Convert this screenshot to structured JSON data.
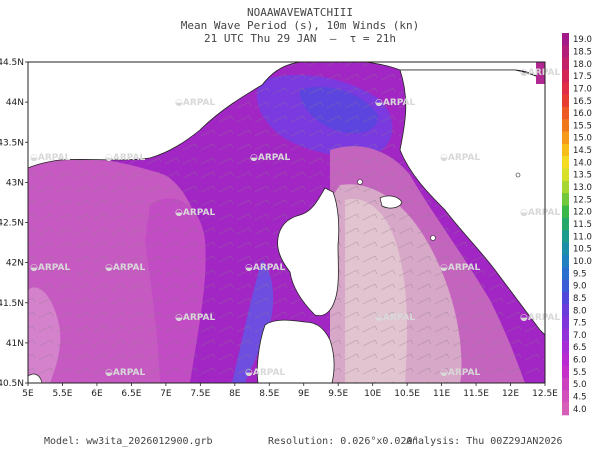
{
  "header": {
    "model_name": "NOAAWAVEWATCHIII",
    "product": "Mean Wave Period (s), 10m Winds (kn)",
    "valid_time": "21 UTC Thu 29 JAN  –  τ = 21h"
  },
  "watermark": "ARPAL",
  "map": {
    "lat_ticks": [
      "44.5N",
      "44N",
      "43.5N",
      "43N",
      "42.5N",
      "42N",
      "41.5N",
      "41N",
      "40.5N"
    ],
    "lon_ticks": [
      "5E",
      "5.5E",
      "6E",
      "6.5E",
      "7E",
      "7.5E",
      "8E",
      "8.5E",
      "9E",
      "9.5E",
      "10E",
      "10.5E",
      "11E",
      "11.5E",
      "12E",
      "12.5E"
    ],
    "lon_range": [
      5,
      12.5
    ],
    "lat_range": [
      40.5,
      44.5
    ]
  },
  "colorbar": {
    "labels": [
      "19.0",
      "18.5",
      "18.0",
      "17.5",
      "17.0",
      "16.5",
      "16.0",
      "15.5",
      "15.0",
      "14.5",
      "14.0",
      "13.5",
      "13.0",
      "12.5",
      "12.0",
      "11.5",
      "11.0",
      "10.5",
      "10.0",
      "9.5",
      "9.0",
      "8.5",
      "8.0",
      "7.5",
      "7.0",
      "6.5",
      "6.0",
      "5.5",
      "5.0",
      "4.5",
      "4.0"
    ],
    "colors": [
      "#a21a8a",
      "#b41e7a",
      "#c42068",
      "#d42456",
      "#e02c44",
      "#e83c32",
      "#ee5a26",
      "#f2781e",
      "#f59a1a",
      "#f7be1a",
      "#f5dc22",
      "#d8e028",
      "#a8d630",
      "#70c83a",
      "#3cb84a",
      "#26a86a",
      "#1c9c8c",
      "#1c8ea8",
      "#2080c0",
      "#2870d0",
      "#3a5cd6",
      "#5048da",
      "#6a3cdc",
      "#8034dc",
      "#9430da",
      "#a82cd6",
      "#b82ad0",
      "#c430c8",
      "#cc40c0",
      "#d250bc",
      "#d65eb8"
    ]
  },
  "footer": {
    "model_label": "Model: ww3ita_2026012900.grb",
    "resolution_label": "Resolution: 0.026°x0.020°",
    "analysis_label": "Analysis: Thu 00Z29JAN2026"
  }
}
